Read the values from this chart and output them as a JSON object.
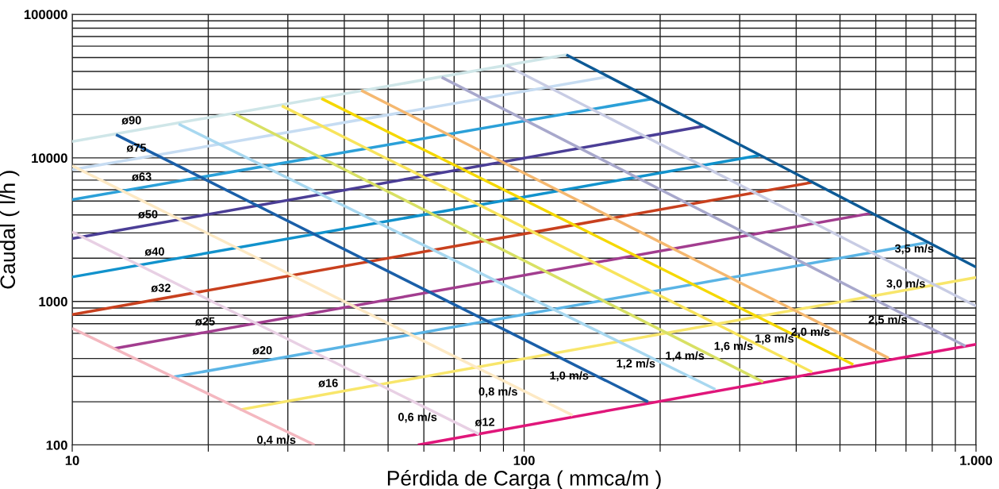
{
  "chart_data": {
    "type": "line",
    "xlabel": "Pérdida de Carga ( mmca/m )",
    "ylabel": "Caudal ( l/h )",
    "log": "xy",
    "grid": true,
    "xlim": [
      10,
      1000
    ],
    "ylim": [
      100,
      100000
    ],
    "xticks": [
      10,
      {
        "value": 20,
        "label": null
      },
      {
        "value": 30,
        "label": null
      },
      {
        "value": 40,
        "label": null
      },
      {
        "value": 50,
        "label": null
      },
      {
        "value": 60,
        "label": null
      },
      {
        "value": 70,
        "label": null
      },
      {
        "value": 80,
        "label": null
      },
      {
        "value": 90,
        "label": null
      },
      100,
      {
        "value": 200,
        "label": null
      },
      {
        "value": 300,
        "label": null
      },
      {
        "value": 400,
        "label": null
      },
      {
        "value": 500,
        "label": null
      },
      {
        "value": 600,
        "label": null
      },
      {
        "value": 700,
        "label": null
      },
      {
        "value": 800,
        "label": null
      },
      {
        "value": 900,
        "label": null
      },
      {
        "value": 1000,
        "label": "1.000"
      }
    ],
    "yticks": [
      100,
      {
        "value": 200,
        "label": null
      },
      {
        "value": 300,
        "label": null
      },
      {
        "value": 400,
        "label": null
      },
      {
        "value": 600,
        "label": null
      },
      {
        "value": 700,
        "label": null
      },
      {
        "value": 800,
        "label": null
      },
      {
        "value": 900,
        "label": null
      },
      1000,
      {
        "value": 2000,
        "label": null
      },
      {
        "value": 3000,
        "label": null
      },
      {
        "value": 4000,
        "label": null
      },
      {
        "value": 5000,
        "label": null
      },
      {
        "value": 6000,
        "label": null
      },
      {
        "value": 7000,
        "label": null
      },
      {
        "value": 8000,
        "label": null
      },
      {
        "value": 9000,
        "label": null
      },
      10000,
      {
        "value": 20000,
        "label": null
      },
      {
        "value": 30000,
        "label": null
      },
      {
        "value": 40000,
        "label": null
      },
      {
        "value": 50000,
        "label": null
      },
      {
        "value": 60000,
        "label": null
      },
      {
        "value": 70000,
        "label": null
      },
      {
        "value": 80000,
        "label": null
      },
      {
        "value": 90000,
        "label": null
      },
      100000
    ],
    "series": [
      {
        "name": "ø90",
        "color": "#cfe6e8",
        "x": [
          10,
          124
        ],
        "values": [
          13000,
          52200
        ]
      },
      {
        "name": "ø75",
        "color": "#c6dcf2",
        "x": [
          10,
          153
        ],
        "values": [
          8260,
          36700
        ]
      },
      {
        "name": "ø63",
        "color": "#2ba0d8",
        "x": [
          10,
          191
        ],
        "values": [
          5120,
          25700
        ]
      },
      {
        "name": "ø50",
        "color": "#4b3e96",
        "x": [
          10,
          249
        ],
        "values": [
          2740,
          16600
        ]
      },
      {
        "name": "ø40",
        "color": "#1192cc",
        "x": [
          10,
          331
        ],
        "values": [
          1480,
          10400
        ]
      },
      {
        "name": "ø32",
        "color": "#c8401e",
        "x": [
          10,
          433
        ],
        "values": [
          809,
          6740
        ]
      },
      {
        "name": "ø25",
        "color": "#a23d8f",
        "x": [
          12.4,
          583
        ],
        "values": [
          470,
          4100
        ]
      },
      {
        "name": "ø20",
        "color": "#5ab4e5",
        "x": [
          16.6,
          780
        ],
        "values": [
          296,
          2570
        ]
      },
      {
        "name": "ø16",
        "color": "#f8e66b",
        "x": [
          23.5,
          1000
        ],
        "values": [
          176,
          1470
        ]
      },
      {
        "name": "ø12",
        "color": "#e0167a",
        "x": [
          58.2,
          1000
        ],
        "values": [
          100,
          503
        ]
      },
      {
        "name": "0,4 m/s",
        "color": "#f4b8c0",
        "x": [
          10,
          34.4
        ],
        "values": [
          649,
          100
        ]
      },
      {
        "name": "0,6 m/s",
        "color": "#e8d0e4",
        "x": [
          10,
          79.4
        ],
        "values": [
          3050,
          119
        ]
      },
      {
        "name": "0,8 m/s",
        "color": "#fde9c4",
        "x": [
          10,
          128
        ],
        "values": [
          8800,
          161
        ]
      },
      {
        "name": "1,0 m/s",
        "color": "#1a5fa8",
        "x": [
          12.5,
          188
        ],
        "values": [
          14500,
          200
        ]
      },
      {
        "name": "1,2 m/s",
        "color": "#a8d8f0",
        "x": [
          17.2,
          265
        ],
        "values": [
          17200,
          244
        ]
      },
      {
        "name": "1,4 m/s",
        "color": "#d8e064",
        "x": [
          23,
          338
        ],
        "values": [
          20100,
          275
        ]
      },
      {
        "name": "1,6 m/s",
        "color": "#f8e45c",
        "x": [
          29.1,
          434
        ],
        "values": [
          23000,
          322
        ]
      },
      {
        "name": "1,8 m/s",
        "color": "#f5d800",
        "x": [
          35.6,
          535
        ],
        "values": [
          25900,
          363
        ]
      },
      {
        "name": "2,0 m/s",
        "color": "#f5b870",
        "x": [
          43.6,
          641
        ],
        "values": [
          29500,
          403
        ]
      },
      {
        "name": "2,5 m/s",
        "color": "#a8a8cc",
        "x": [
          65.7,
          948
        ],
        "values": [
          36400,
          488
        ]
      },
      {
        "name": "3,0 m/s",
        "color": "#c8cce4",
        "x": [
          91.4,
          1000
        ],
        "values": [
          44000,
          929
        ]
      },
      {
        "name": "3,5 m/s",
        "color": "#0d5a96",
        "x": [
          124,
          1000
        ],
        "values": [
          52200,
          1735
        ]
      }
    ]
  }
}
